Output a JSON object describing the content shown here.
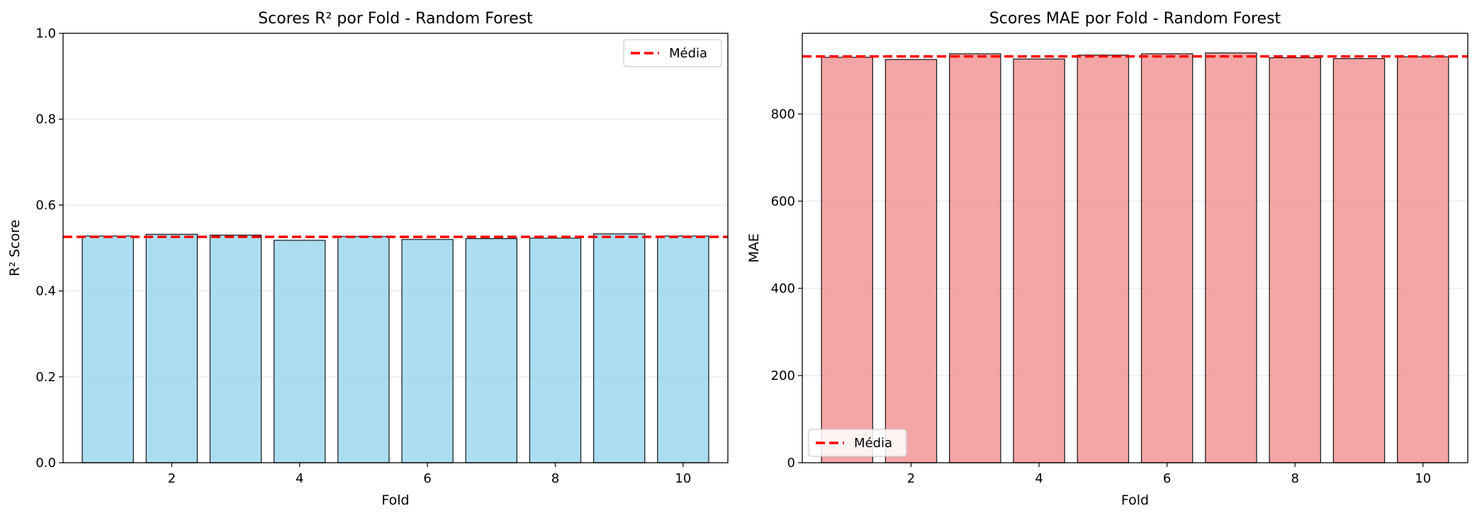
{
  "chart_data": [
    {
      "type": "bar",
      "title": "Scores R² por Fold - Random Forest",
      "xlabel": "Fold",
      "ylabel": "R² Score",
      "x": [
        1,
        2,
        3,
        4,
        5,
        6,
        7,
        8,
        9,
        10
      ],
      "values": [
        0.528,
        0.532,
        0.53,
        0.518,
        0.527,
        0.52,
        0.522,
        0.523,
        0.533,
        0.528
      ],
      "mean": 0.526,
      "mean_label": "Média",
      "xlim": [
        0.3,
        10.7
      ],
      "ylim": [
        0,
        1.0
      ],
      "xticks": [
        2,
        4,
        6,
        8,
        10
      ],
      "yticks": [
        0.0,
        0.2,
        0.4,
        0.6,
        0.8,
        1.0
      ],
      "ytick_labels": [
        "0.0",
        "0.2",
        "0.4",
        "0.6",
        "0.8",
        "1.0"
      ],
      "bar_color": "#87CEEB",
      "mean_color": "#FF0000",
      "legend_position": "top-right",
      "grid": "y"
    },
    {
      "type": "bar",
      "title": "Scores MAE por Fold - Random Forest",
      "xlabel": "Fold",
      "ylabel": "MAE",
      "x": [
        1,
        2,
        3,
        4,
        5,
        6,
        7,
        8,
        9,
        10
      ],
      "values": [
        930,
        925,
        938,
        926,
        935,
        938,
        940,
        929,
        927,
        931
      ],
      "mean": 932,
      "mean_label": "Média",
      "xlim": [
        0.3,
        10.7
      ],
      "ylim": [
        0,
        985
      ],
      "xticks": [
        2,
        4,
        6,
        8,
        10
      ],
      "yticks": [
        0,
        200,
        400,
        600,
        800
      ],
      "ytick_labels": [
        "0",
        "200",
        "400",
        "600",
        "800"
      ],
      "bar_color": "#F08080",
      "mean_color": "#FF0000",
      "legend_position": "bottom-left",
      "grid": "y"
    }
  ]
}
